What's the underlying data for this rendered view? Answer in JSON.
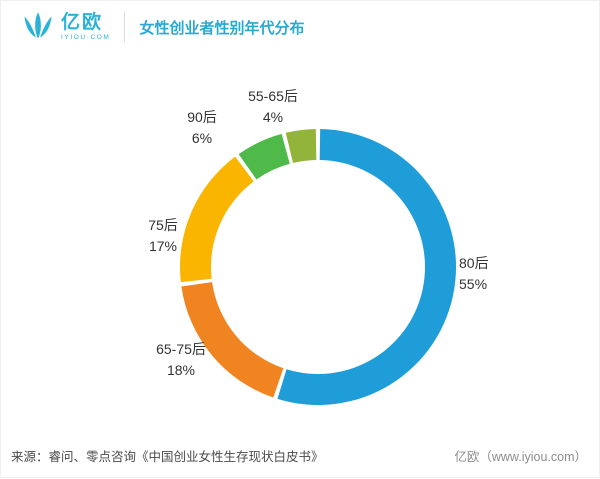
{
  "header": {
    "brand": "亿欧",
    "brand_sub": "IYIOU·COM",
    "title": "女性创业者性别年代分布",
    "accent_color": "#29a9d2",
    "logo_color": "#2ab3d6"
  },
  "chart_data": {
    "type": "pie",
    "donut": true,
    "title": "女性创业者性别年代分布",
    "start_angle_deg": -90,
    "direction": "clockwise",
    "legend_position": "labels-outside",
    "segments": [
      {
        "label": "80后",
        "value": 55,
        "pct": "55%",
        "color": "#1e9dd8"
      },
      {
        "label": "65-75后",
        "value": 18,
        "pct": "18%",
        "color": "#f08421"
      },
      {
        "label": "75后",
        "value": 17,
        "pct": "17%",
        "color": "#f9b500"
      },
      {
        "label": "90后",
        "value": 6,
        "pct": "6%",
        "color": "#4fba49"
      },
      {
        "label": "55-65后",
        "value": 4,
        "pct": "4%",
        "color": "#93b43a"
      }
    ]
  },
  "footer": {
    "source": "来源：睿问、零点咨询《中国创业女性生存现状白皮书》",
    "site": "亿欧（www.iyiou.com）"
  }
}
